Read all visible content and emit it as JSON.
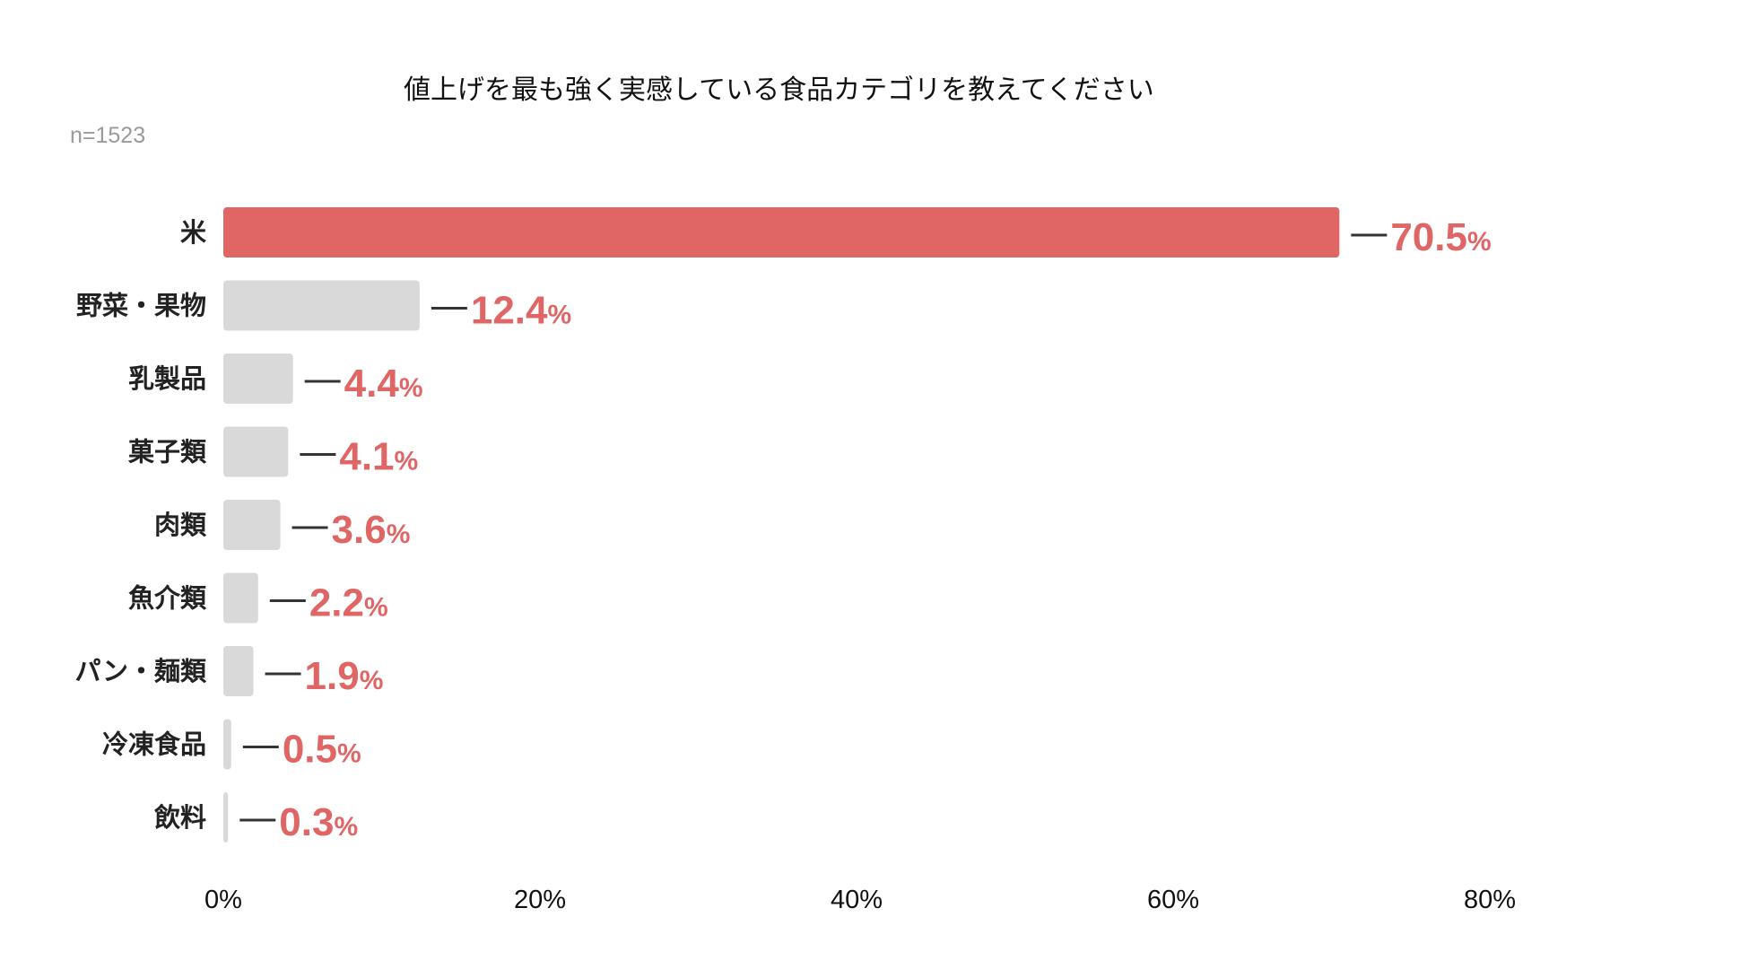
{
  "chart_data": {
    "type": "bar",
    "orientation": "horizontal",
    "title": "値上げを最も強く実感している食品カテゴリを教えてください",
    "subtitle": "n=1523",
    "categories": [
      "米",
      "野菜・果物",
      "乳製品",
      "菓子類",
      "肉類",
      "魚介類",
      "パン・麺類",
      "冷凍食品",
      "飲料"
    ],
    "values": [
      70.5,
      12.4,
      4.4,
      4.1,
      3.6,
      2.2,
      1.9,
      0.5,
      0.3
    ],
    "value_labels": [
      "70.5",
      "12.4",
      "4.4",
      "4.1",
      "3.6",
      "2.2",
      "1.9",
      "0.5",
      "0.3"
    ],
    "value_unit": "%",
    "xlim": [
      0,
      80
    ],
    "x_ticks": [
      0,
      20,
      40,
      60,
      80
    ],
    "x_tick_labels": [
      "0%",
      "20%",
      "40%",
      "60%",
      "80%"
    ],
    "grid": false,
    "legend": "none",
    "highlight_index": 0,
    "colors": {
      "highlight_bar": "#e06666",
      "bar": "#d9d9d9",
      "value_text": "#e06666",
      "leader_line": "#333333",
      "title": "#111111",
      "subtitle": "#9a9a9a"
    }
  }
}
